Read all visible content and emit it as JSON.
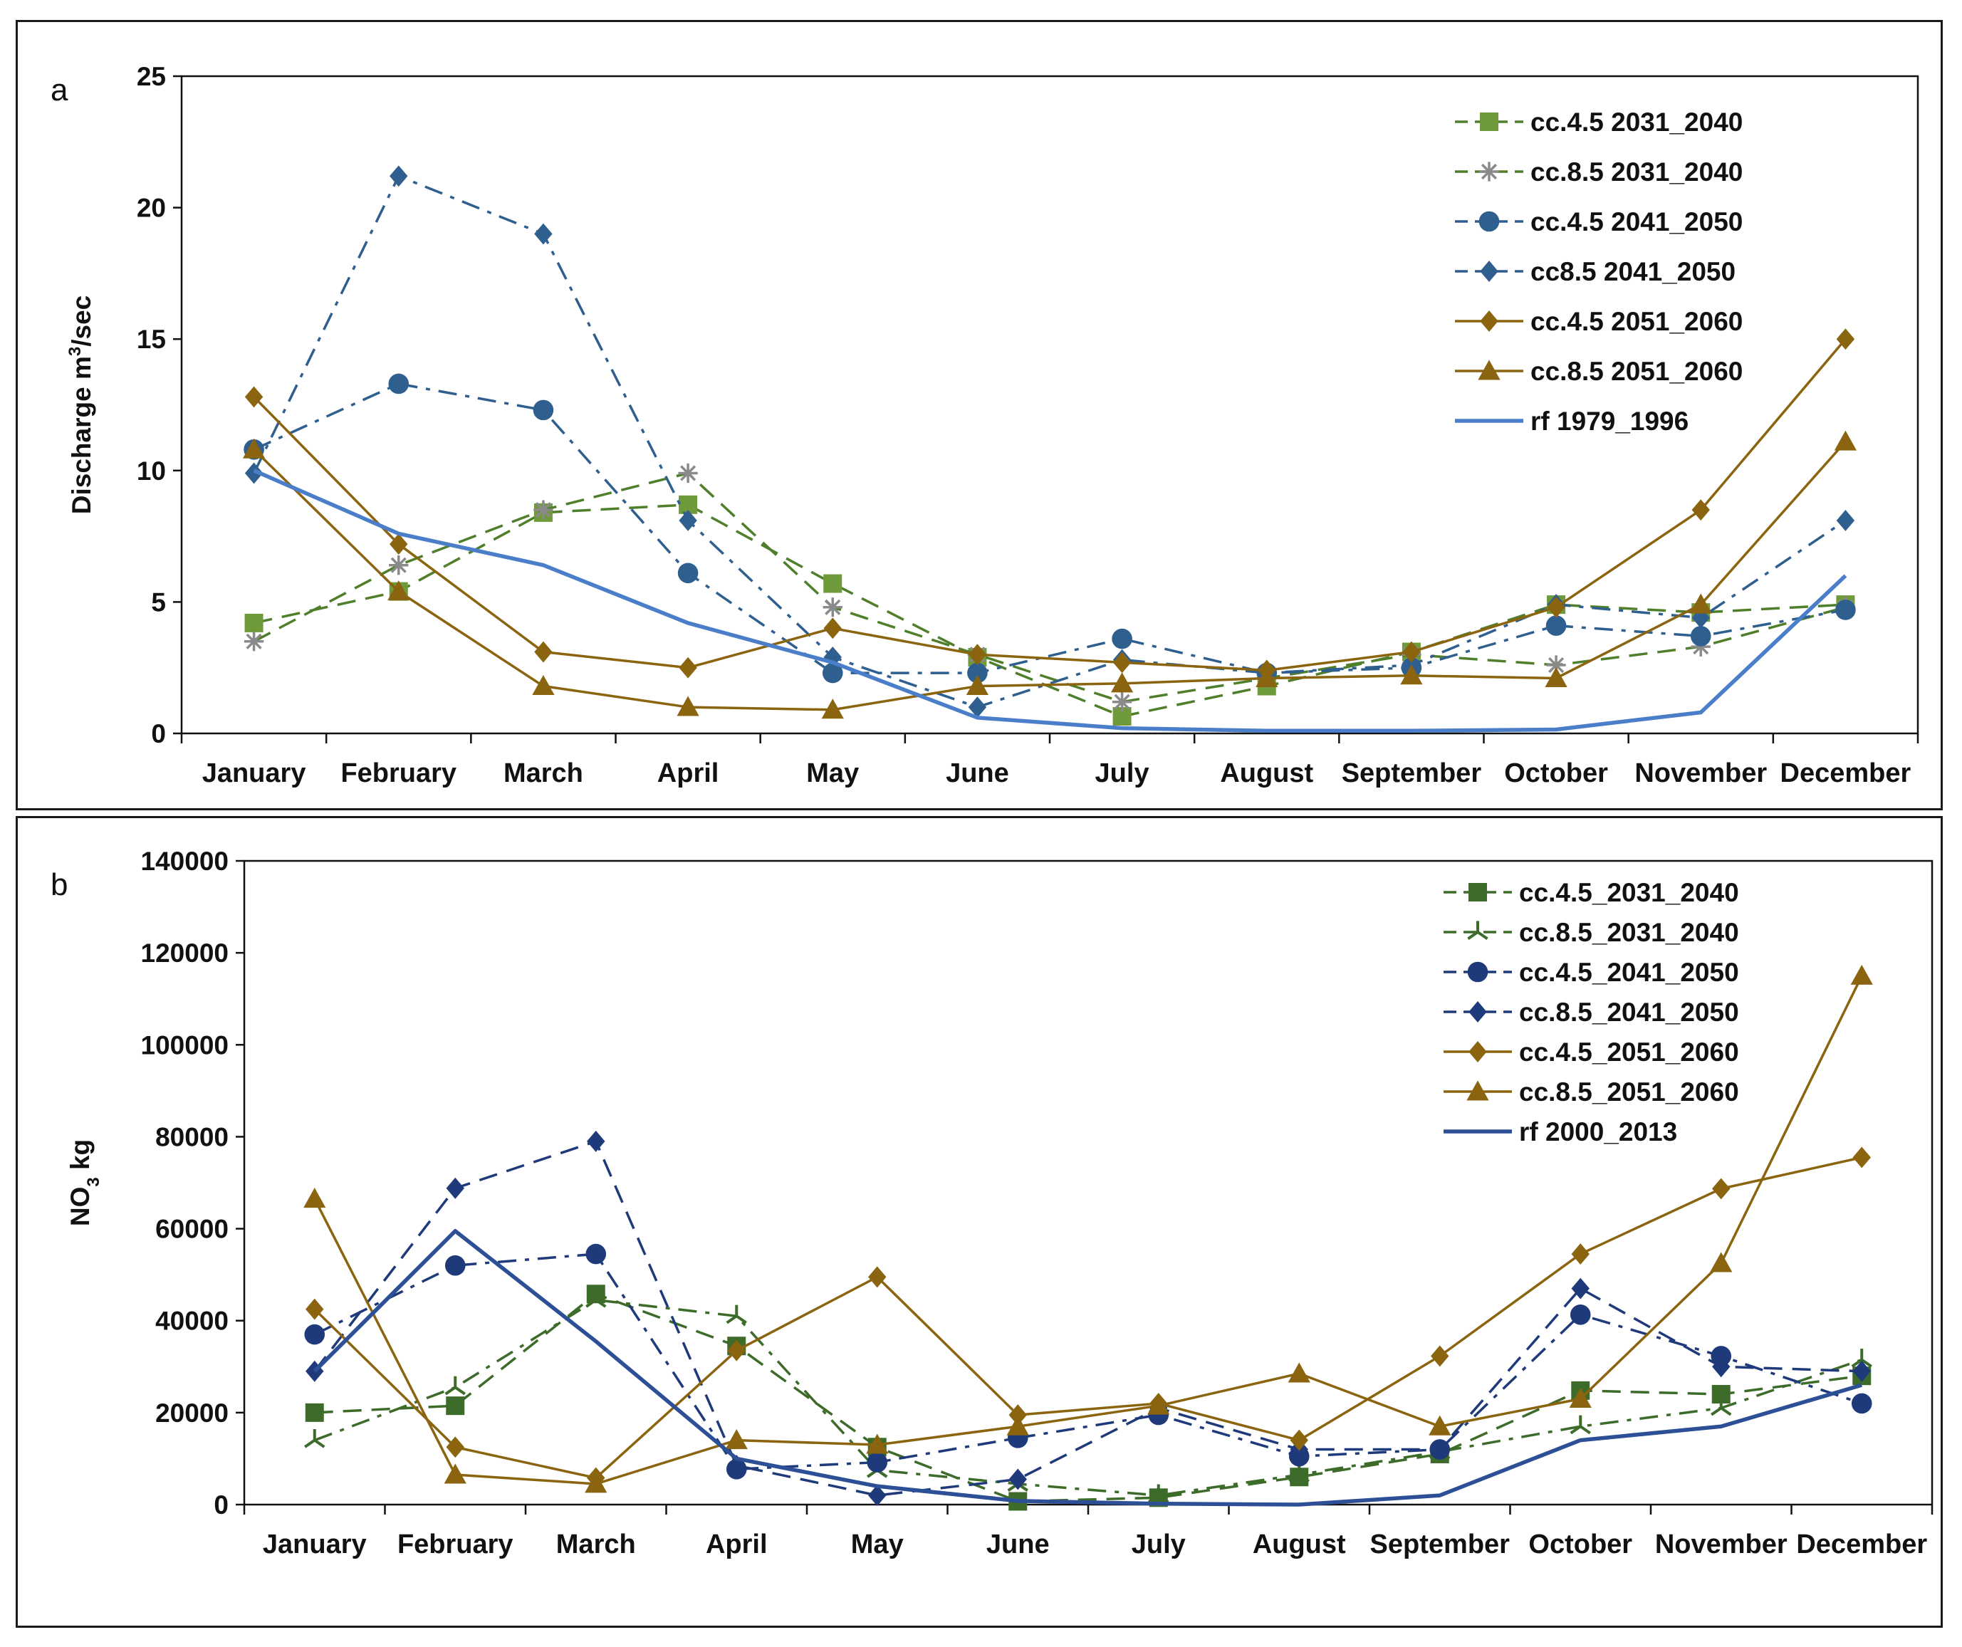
{
  "chart_data": [
    {
      "type": "line",
      "panel_label": "a",
      "ylabel": "Discharge m³/sec",
      "ylabel_parts": [
        "Discharge m",
        "3",
        "/sec"
      ],
      "ylim": [
        0,
        25
      ],
      "yticks": [
        "0",
        "5",
        "10",
        "15",
        "20",
        "25"
      ],
      "grid": false,
      "legend": "top-right",
      "categories": [
        "January",
        "February",
        "March",
        "April",
        "May",
        "June",
        "July",
        "August",
        "September",
        "October",
        "November",
        "December"
      ],
      "series": [
        {
          "name": "cc.4.5 2031_2040",
          "color": "#4f7f2a",
          "marker": "square",
          "marker_color": "#6f9a3a",
          "dash": "dash",
          "values": [
            4.2,
            5.4,
            8.4,
            8.7,
            5.7,
            2.9,
            0.65,
            1.8,
            3.1,
            4.9,
            4.6,
            4.9
          ]
        },
        {
          "name": "cc.8.5 2031_2040",
          "color": "#4f7f2a",
          "marker": "asterisk",
          "marker_color": "#8a8a8a",
          "dash": "dash",
          "values": [
            3.5,
            6.4,
            8.5,
            9.9,
            4.8,
            3.0,
            1.2,
            2.1,
            3.0,
            2.6,
            3.3,
            4.8
          ]
        },
        {
          "name": "cc.4.5 2041_2050",
          "color": "#2f5f8f",
          "marker": "circle",
          "marker_color": "#2f5f8f",
          "dash": "dashdot",
          "values": [
            10.8,
            13.3,
            12.3,
            6.1,
            2.3,
            2.3,
            3.6,
            2.3,
            2.5,
            4.1,
            3.7,
            4.7
          ]
        },
        {
          "name": "cc8.5 2041_2050",
          "color": "#2f5f8f",
          "marker": "diamond",
          "marker_color": "#2f5f8f",
          "dash": "dashdot",
          "values": [
            9.9,
            21.2,
            19.0,
            8.1,
            2.9,
            1.0,
            2.8,
            2.3,
            2.6,
            4.9,
            4.4,
            8.1
          ]
        },
        {
          "name": "cc.4.5 2051_2060",
          "color": "#8b6410",
          "marker": "diamond",
          "marker_color": "#8b6410",
          "dash": "solid",
          "values": [
            12.8,
            7.2,
            3.1,
            2.5,
            4.0,
            3.0,
            2.7,
            2.4,
            3.1,
            4.8,
            8.5,
            15.0
          ]
        },
        {
          "name": "cc.8.5 2051_2060",
          "color": "#8b6410",
          "marker": "triangle",
          "marker_color": "#8b6410",
          "dash": "solid",
          "values": [
            10.8,
            5.4,
            1.8,
            1.0,
            0.9,
            1.8,
            1.9,
            2.1,
            2.2,
            2.1,
            4.9,
            11.1
          ]
        },
        {
          "name": "rf 1979_1996",
          "color": "#4a7ec9",
          "marker": "none",
          "marker_color": "#4a7ec9",
          "dash": "solid",
          "values": [
            10.0,
            7.6,
            6.4,
            4.2,
            2.7,
            0.6,
            0.2,
            0.1,
            0.1,
            0.15,
            0.8,
            6.0
          ]
        }
      ]
    },
    {
      "type": "line",
      "panel_label": "b",
      "ylabel": "NO₃ kg",
      "ylabel_parts": [
        "NO",
        "3",
        " kg"
      ],
      "ylim": [
        0,
        140000
      ],
      "yticks": [
        "0",
        "20000",
        "40000",
        "60000",
        "80000",
        "100000",
        "120000",
        "140000"
      ],
      "grid": false,
      "legend": "top-right",
      "categories": [
        "January",
        "February",
        "March",
        "April",
        "May",
        "June",
        "July",
        "August",
        "September",
        "October",
        "November",
        "December"
      ],
      "series": [
        {
          "name": "cc.4.5_2031_2040",
          "color": "#3d6b2a",
          "marker": "square",
          "marker_color": "#3d6b2a",
          "dash": "dash",
          "values": [
            20000,
            21500,
            45800,
            34500,
            12500,
            700,
            1500,
            6000,
            11000,
            24800,
            24000,
            28000
          ]
        },
        {
          "name": "cc.8.5_2031_2040",
          "color": "#3d6b2a",
          "marker": "tristar",
          "marker_color": "#3d6b2a",
          "dash": "dashdot",
          "values": [
            14000,
            25500,
            44500,
            41000,
            7500,
            4500,
            2000,
            6500,
            11500,
            17000,
            21000,
            31500
          ]
        },
        {
          "name": "cc.4.5_2041_2050",
          "color": "#1f3a7a",
          "marker": "circle",
          "marker_color": "#1f3a7a",
          "dash": "dashdot",
          "values": [
            37000,
            52000,
            54500,
            7700,
            9200,
            14500,
            19500,
            10500,
            12000,
            41300,
            32300,
            22000
          ]
        },
        {
          "name": "cc.8.5_2041_2050",
          "color": "#1f3a7a",
          "marker": "diamond",
          "marker_color": "#1f3a7a",
          "dash": "dash",
          "values": [
            29000,
            68800,
            79000,
            8500,
            2000,
            5500,
            21000,
            12000,
            12000,
            47000,
            30000,
            29000
          ]
        },
        {
          "name": "cc.4.5_2051_2060",
          "color": "#8b6410",
          "marker": "diamond",
          "marker_color": "#8b6410",
          "dash": "solid",
          "values": [
            42500,
            12500,
            5800,
            33500,
            49500,
            19500,
            22000,
            14000,
            32300,
            54500,
            68700,
            75500
          ]
        },
        {
          "name": "cc.8.5_2051_2060",
          "color": "#8b6410",
          "marker": "triangle",
          "marker_color": "#8b6410",
          "dash": "solid",
          "values": [
            66500,
            6500,
            4500,
            14000,
            13000,
            17000,
            21500,
            28500,
            17000,
            23000,
            52500,
            115000
          ]
        },
        {
          "name": "rf 2000_2013",
          "color": "#2c4f96",
          "marker": "none",
          "marker_color": "#2c4f96",
          "dash": "solid",
          "values": [
            29000,
            59500,
            35500,
            10000,
            4000,
            800,
            200,
            0,
            2000,
            14000,
            17000,
            26000
          ]
        }
      ]
    }
  ]
}
